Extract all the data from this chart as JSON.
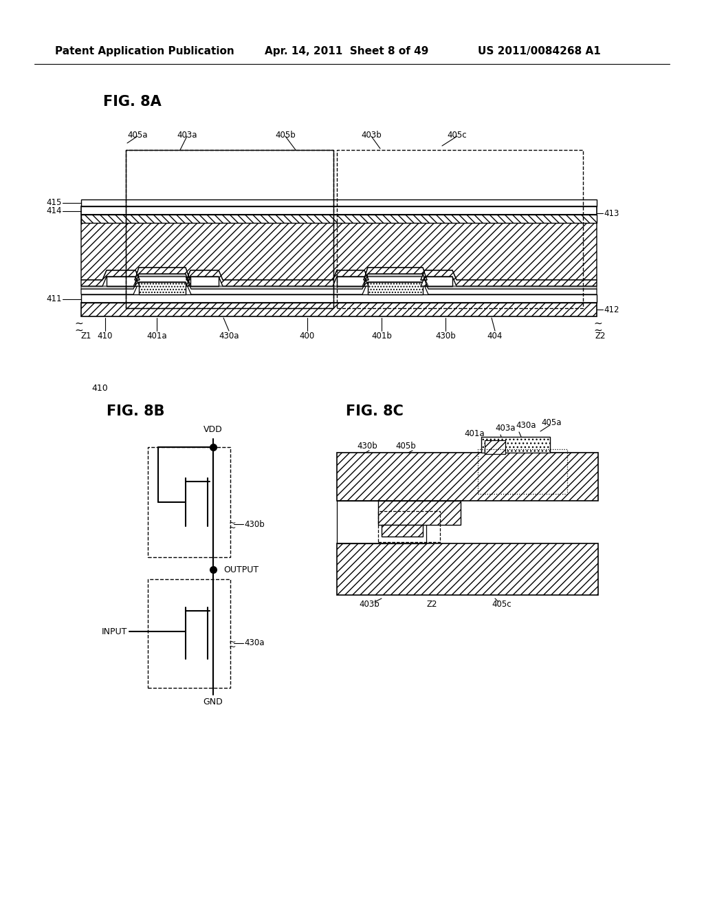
{
  "header_left": "Patent Application Publication",
  "header_mid": "Apr. 14, 2011  Sheet 8 of 49",
  "header_right": "US 2011/0084268 A1",
  "fig8a_title": "FIG. 8A",
  "fig8b_title": "FIG. 8B",
  "fig8c_title": "FIG. 8C",
  "label_410": "410",
  "bg": "#ffffff",
  "lc": "#000000"
}
